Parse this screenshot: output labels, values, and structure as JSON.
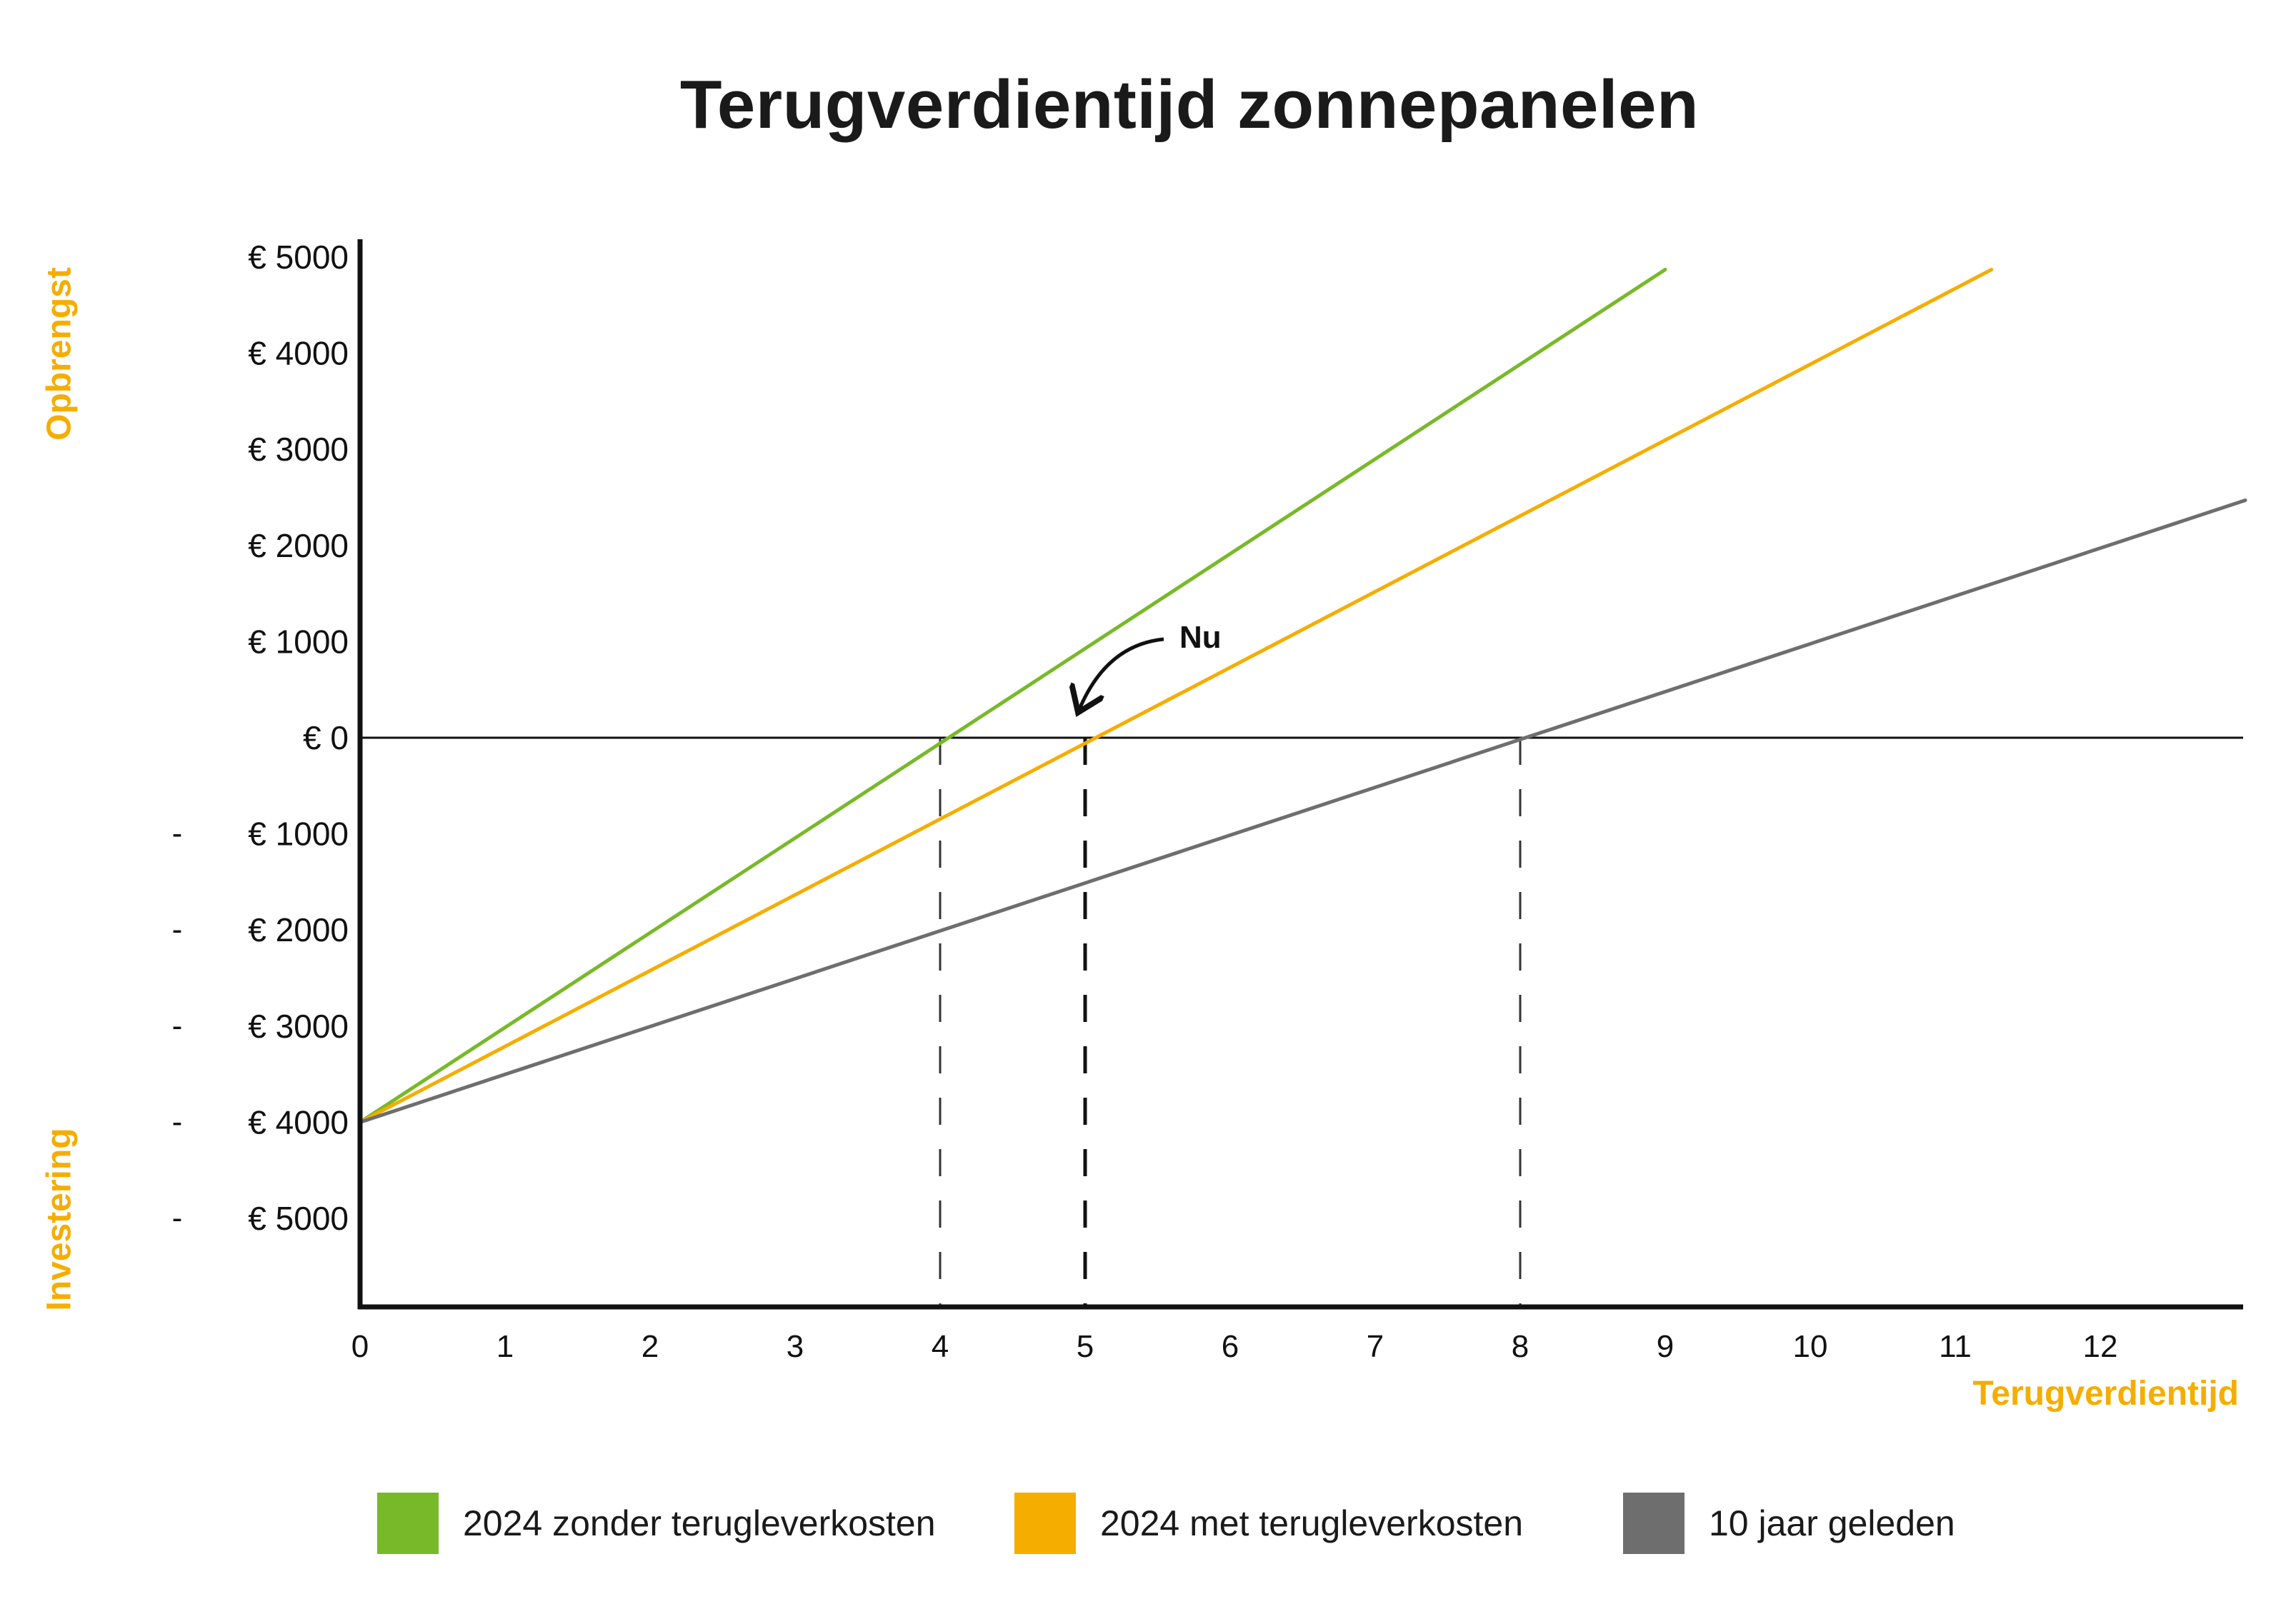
{
  "chart_data": {
    "type": "line",
    "title": "Terugverdientijd zonnepanelen",
    "xlabel": "Terugverdientijd",
    "ylabel_top": "Opbrengst",
    "ylabel_bottom": "Investering",
    "xlim": [
      0,
      13
    ],
    "ylim": [
      -6000,
      5000
    ],
    "x_ticks": [
      "0",
      "1",
      "2",
      "3",
      "4",
      "5",
      "6",
      "7",
      "8",
      "9",
      "10",
      "11",
      "12"
    ],
    "y_ticks": [
      {
        "value": 5000,
        "label": "€ 5000",
        "minus": ""
      },
      {
        "value": 4000,
        "label": "€ 4000",
        "minus": ""
      },
      {
        "value": 3000,
        "label": "€ 3000",
        "minus": ""
      },
      {
        "value": 2000,
        "label": "€ 2000",
        "minus": ""
      },
      {
        "value": 1000,
        "label": "€ 1000",
        "minus": ""
      },
      {
        "value": 0,
        "label": "€ 0",
        "minus": ""
      },
      {
        "value": -1000,
        "label": "€ 1000",
        "minus": "-"
      },
      {
        "value": -2000,
        "label": "€ 2000",
        "minus": "-"
      },
      {
        "value": -3000,
        "label": "€ 3000",
        "minus": "-"
      },
      {
        "value": -4000,
        "label": "€ 4000",
        "minus": "-"
      },
      {
        "value": -5000,
        "label": "€ 5000",
        "minus": "-"
      }
    ],
    "series": [
      {
        "name": "2024 zonder terugleverkosten",
        "color": "#78b929",
        "x": [
          0,
          9
        ],
        "y": [
          -4000,
          4870
        ]
      },
      {
        "name": "2024 met terugleverkosten",
        "color": "#f5ad00",
        "x": [
          0,
          11.25
        ],
        "y": [
          -4000,
          4870
        ]
      },
      {
        "name": "10 jaar geleden",
        "color": "#6e6e6e",
        "x": [
          0,
          13
        ],
        "y": [
          -4000,
          2470
        ]
      }
    ],
    "breakeven_x": [
      4,
      5,
      8
    ],
    "annotation": {
      "text": "Nu",
      "x": 5,
      "y": 0
    }
  }
}
